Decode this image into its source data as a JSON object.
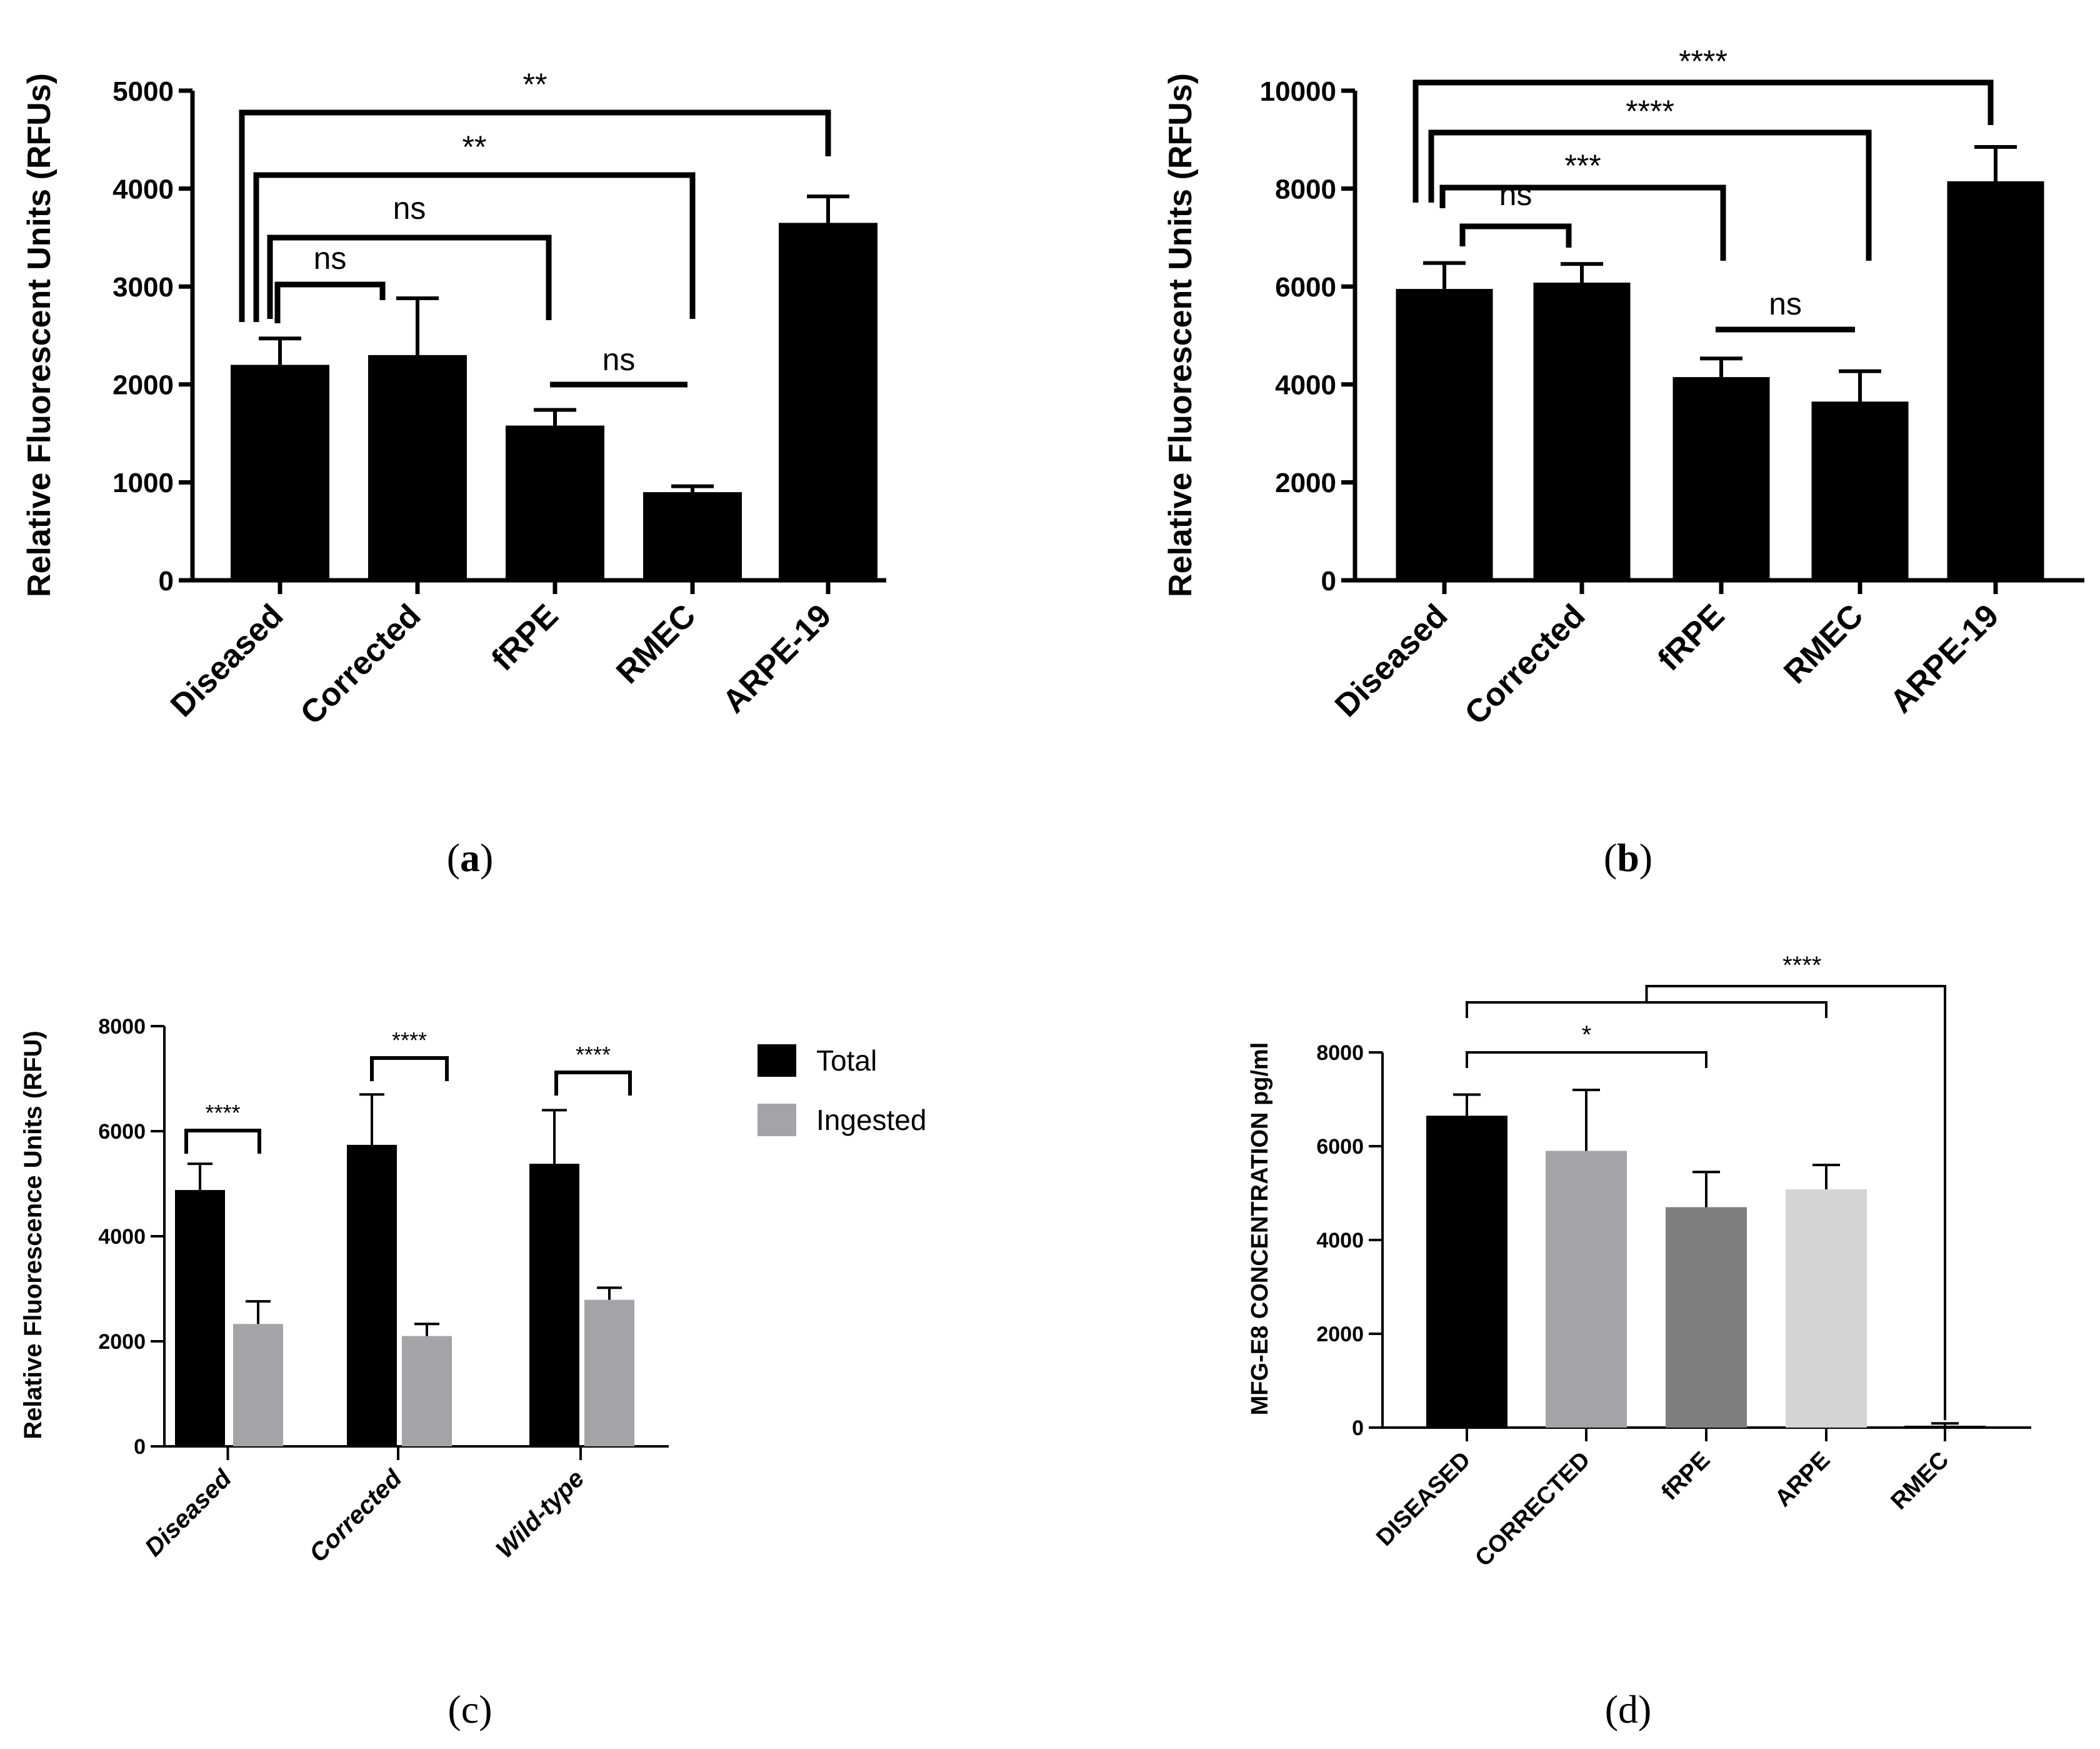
{
  "panel_labels": {
    "a": [
      "(",
      "a",
      ")"
    ],
    "b": [
      "(",
      "b",
      ")"
    ],
    "c": "(c)",
    "d": "(d)"
  },
  "chart_data": [
    {
      "id": "a",
      "type": "bar",
      "title": "",
      "xlabel": "",
      "ylabel": "Relative Fluorescent Units (RFUs)",
      "ylim": [
        0,
        5000
      ],
      "yticks": [
        0,
        1000,
        2000,
        3000,
        4000,
        5000
      ],
      "categories": [
        "Diseased",
        "Corrected",
        "fRPE",
        "RMEC",
        "ARPE-19"
      ],
      "series": [
        {
          "name": "",
          "color": "#000000",
          "values": [
            2200,
            2300,
            1580,
            900,
            3650
          ],
          "errors": [
            270,
            580,
            160,
            60,
            270
          ]
        }
      ],
      "annotations": [
        {
          "text": "**",
          "from": 0,
          "to": 4
        },
        {
          "text": "**",
          "from": 0,
          "to": 3
        },
        {
          "text": "ns",
          "from": 0,
          "to": 2
        },
        {
          "text": "ns",
          "from": 0,
          "to": 1
        },
        {
          "text": "ns",
          "from": 2,
          "to": 3
        }
      ]
    },
    {
      "id": "b",
      "type": "bar",
      "title": "",
      "xlabel": "",
      "ylabel": "Relative Fluorescent Units (RFUs)",
      "ylim": [
        0,
        10000
      ],
      "yticks": [
        0,
        2000,
        4000,
        6000,
        8000,
        10000
      ],
      "categories": [
        "Diseased",
        "Corrected",
        "fRPE",
        "RMEC",
        "ARPE-19"
      ],
      "series": [
        {
          "name": "",
          "color": "#000000",
          "values": [
            5950,
            6080,
            4150,
            3650,
            8150
          ],
          "errors": [
            530,
            380,
            380,
            620,
            700
          ]
        }
      ],
      "annotations": [
        {
          "text": "****",
          "from": 0,
          "to": 4
        },
        {
          "text": "****",
          "from": 0,
          "to": 3
        },
        {
          "text": "***",
          "from": 0,
          "to": 2
        },
        {
          "text": "ns",
          "from": 0,
          "to": 1
        },
        {
          "text": "ns",
          "from": 2,
          "to": 3
        }
      ]
    },
    {
      "id": "c",
      "type": "bar",
      "title": "",
      "xlabel": "",
      "ylabel": "Relative Fluorescence Units (RFU)",
      "ylim": [
        0,
        8000
      ],
      "yticks": [
        0,
        2000,
        4000,
        6000,
        8000
      ],
      "categories": [
        "Diseased",
        "Corrected",
        "Wild-type"
      ],
      "legend_position": "top-right",
      "series": [
        {
          "name": "Total",
          "color": "#000000",
          "values": [
            4880,
            5740,
            5380
          ],
          "errors": [
            500,
            960,
            1020
          ]
        },
        {
          "name": "Ingested",
          "color": "#a3a3a8",
          "values": [
            2330,
            2100,
            2790
          ],
          "errors": [
            430,
            230,
            230
          ]
        }
      ],
      "annotations": [
        {
          "text": "****",
          "group": 0
        },
        {
          "text": "****",
          "group": 1
        },
        {
          "text": "****",
          "group": 2
        }
      ]
    },
    {
      "id": "d",
      "type": "bar",
      "title": "",
      "xlabel": "",
      "ylabel": "MFG-E8 CONCENTRATION pg/ml",
      "ylim": [
        0,
        8000
      ],
      "yticks": [
        0,
        2000,
        4000,
        6000,
        8000
      ],
      "categories": [
        "DISEASED",
        "CORRECTED",
        "fRPE",
        "ARPE",
        "RMEC"
      ],
      "series": [
        {
          "name": "",
          "colors": [
            "#000000",
            "#a3a3a8",
            "#7f7f7f",
            "#d4d4d4",
            "#000000"
          ],
          "values": [
            6650,
            5900,
            4700,
            5080,
            40
          ],
          "errors": [
            450,
            1300,
            750,
            520,
            50
          ]
        }
      ],
      "annotations": [
        {
          "text": "****",
          "from": [
            0,
            3
          ],
          "to": 4
        },
        {
          "text": "*",
          "from": 0,
          "to": 2
        }
      ]
    }
  ]
}
